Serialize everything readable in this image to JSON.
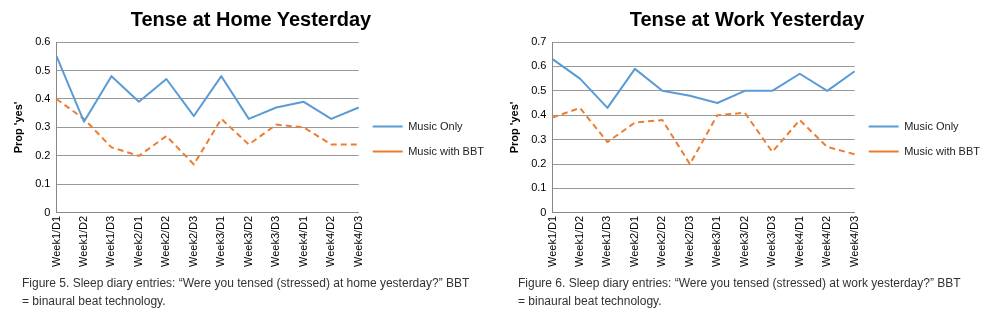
{
  "chart_data": [
    {
      "type": "line",
      "title": "Tense at Home Yesterday",
      "ylabel": "Prop 'yes'",
      "categories": [
        "Week1/D1",
        "Week1/D2",
        "Week1/D3",
        "Week2/D1",
        "Week2/D2",
        "Week2/D3",
        "Week3/D1",
        "Week3/D2",
        "Week3/D3",
        "Week4/D1",
        "Week4/D2",
        "Week4/D3"
      ],
      "series": [
        {
          "name": "Music Only",
          "color": "#5b9bd5",
          "line_style": "solid",
          "values": [
            0.55,
            0.32,
            0.48,
            0.39,
            0.47,
            0.34,
            0.48,
            0.33,
            0.37,
            0.39,
            0.33,
            0.37
          ]
        },
        {
          "name": "Music with BBT",
          "color": "#ed7d31",
          "line_style": "dashed",
          "values": [
            0.4,
            0.33,
            0.23,
            0.2,
            0.27,
            0.17,
            0.33,
            0.24,
            0.31,
            0.3,
            0.24,
            0.24
          ]
        }
      ],
      "ylim": [
        0,
        0.6
      ],
      "yticks": [
        0,
        0.1,
        0.2,
        0.3,
        0.4,
        0.5,
        0.6
      ],
      "grid": "y",
      "legend": "right",
      "annotations": [
        "Figure 5. Sleep diary entries: “Were you tensed (stressed) at home yesterday?” BBT = binaural beat technology."
      ]
    },
    {
      "type": "line",
      "title": "Tense at Work Yesterday",
      "ylabel": "Prop 'yes'",
      "categories": [
        "Week1/D1",
        "Week1/D2",
        "Week1/D3",
        "Week2/D1",
        "Week2/D2",
        "Week2/D3",
        "Week3/D1",
        "Week3/D2",
        "Week3/D3",
        "Week4/D1",
        "Week4/D2",
        "Week4/D3"
      ],
      "series": [
        {
          "name": "Music Only",
          "color": "#5b9bd5",
          "line_style": "solid",
          "values": [
            0.63,
            0.55,
            0.43,
            0.59,
            0.5,
            0.48,
            0.45,
            0.5,
            0.5,
            0.57,
            0.5,
            0.58
          ]
        },
        {
          "name": "Music with BBT",
          "color": "#ed7d31",
          "line_style": "dashed",
          "values": [
            0.39,
            0.43,
            0.29,
            0.37,
            0.38,
            0.2,
            0.4,
            0.41,
            0.25,
            0.38,
            0.27,
            0.24
          ]
        }
      ],
      "ylim": [
        0,
        0.7
      ],
      "yticks": [
        0,
        0.1,
        0.2,
        0.3,
        0.4,
        0.5,
        0.6,
        0.7
      ],
      "grid": "y",
      "legend": "right",
      "annotations": [
        "Figure 6. Sleep diary entries: “Were you tensed (stressed) at work yesterday?” BBT = binaural beat technology."
      ]
    }
  ]
}
